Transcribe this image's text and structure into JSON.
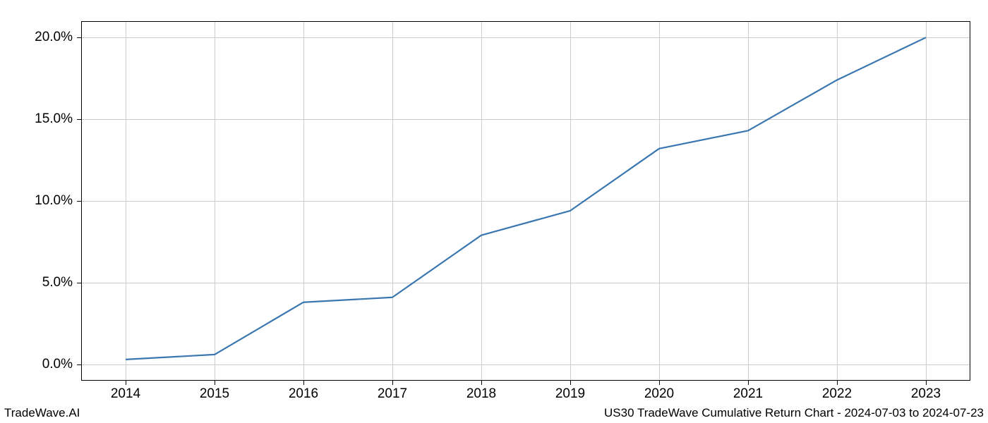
{
  "chart": {
    "type": "line",
    "x_values": [
      2014,
      2015,
      2016,
      2017,
      2018,
      2019,
      2020,
      2021,
      2022,
      2023
    ],
    "y_values": [
      0.3,
      0.6,
      3.8,
      4.1,
      7.9,
      9.4,
      13.2,
      14.3,
      17.4,
      20.0
    ],
    "xlim": [
      2013.5,
      2023.5
    ],
    "ylim": [
      -1.0,
      21.0
    ],
    "x_ticks": [
      2014,
      2015,
      2016,
      2017,
      2018,
      2019,
      2020,
      2021,
      2022,
      2023
    ],
    "x_tick_labels": [
      "2014",
      "2015",
      "2016",
      "2017",
      "2018",
      "2019",
      "2020",
      "2021",
      "2022",
      "2023"
    ],
    "y_ticks": [
      0,
      5,
      10,
      15,
      20
    ],
    "y_tick_labels": [
      "0.0%",
      "5.0%",
      "10.0%",
      "15.0%",
      "20.0%"
    ],
    "line_color": "#3a76af",
    "line_width": 2.2,
    "grid_color": "#cccccc",
    "background_color": "#ffffff",
    "frame_color": "#000000",
    "tick_fontsize": 19,
    "footer_fontsize": 17
  },
  "footer_left": "TradeWave.AI",
  "footer_right": "US30 TradeWave Cumulative Return Chart - 2024-07-03 to 2024-07-23"
}
